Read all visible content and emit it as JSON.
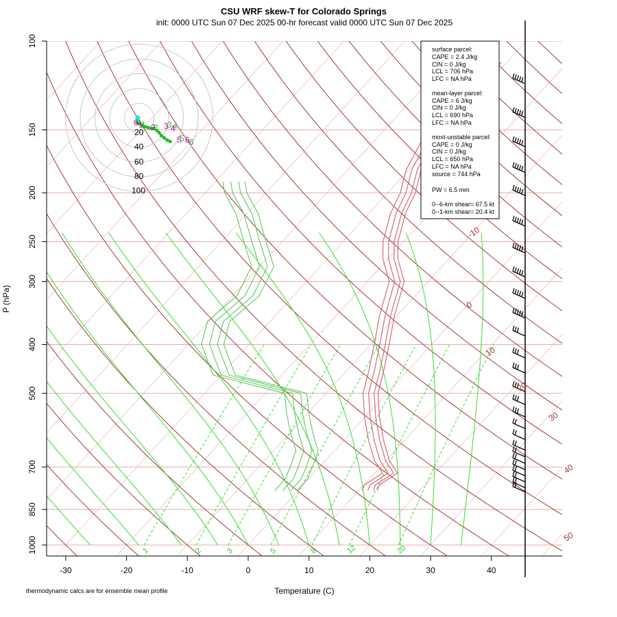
{
  "chart_data": {
    "type": "skew-T",
    "title": "CSU WRF skew-T for Colorado Springs",
    "subtitle": "init: 0000 UTC Sun 07 Dec 2025     00-hr forecast valid 0000 UTC Sun 07 Dec 2025",
    "xlabel": "Temperature (C)",
    "ylabel": "P (hPa)",
    "footnote": "thermodynamic calcs are for ensemble mean profile",
    "x_ticks": [
      -30,
      -20,
      -10,
      0,
      10,
      20,
      30,
      40
    ],
    "y_ticks": [
      100,
      150,
      200,
      250,
      300,
      400,
      500,
      700,
      850,
      1000
    ],
    "xlim": [
      -33,
      52
    ],
    "ylim": [
      1050,
      100
    ],
    "colors": {
      "temperature": "#d45b6a",
      "dewpoint": "#5dc85d",
      "dry_adiabat": "#a33636",
      "moist_adiabat": "#33dd33",
      "mixing_ratio": "#33dd33",
      "isobar": "#e4a8a8",
      "isotherm": "#e4b8b8",
      "wind_barb": "#000000",
      "hodo_green": "#22bb22",
      "hodo_magenta": "#cc00cc",
      "hodo_cyan": "#22ddee"
    },
    "dry_adiabat_labels": [
      "-10",
      "0",
      "10",
      "20",
      "30",
      "40",
      "50"
    ],
    "mixing_ratio_labels": [
      "1",
      "2",
      "3",
      "5",
      "8",
      "12",
      "20"
    ],
    "temperature_profile": [
      {
        "p": 780,
        "t": 11.5
      },
      {
        "p": 760,
        "t": 11.0
      },
      {
        "p": 720,
        "t": 12.2
      },
      {
        "p": 680,
        "t": 9.0
      },
      {
        "p": 620,
        "t": 5.0
      },
      {
        "p": 560,
        "t": 1.0
      },
      {
        "p": 500,
        "t": -3.0
      },
      {
        "p": 450,
        "t": -5.5
      },
      {
        "p": 400,
        "t": -8.5
      },
      {
        "p": 350,
        "t": -12.0
      },
      {
        "p": 300,
        "t": -15.5
      },
      {
        "p": 270,
        "t": -20.0
      },
      {
        "p": 250,
        "t": -22.5
      },
      {
        "p": 220,
        "t": -25.5
      },
      {
        "p": 200,
        "t": -27.0
      },
      {
        "p": 180,
        "t": -29.5
      },
      {
        "p": 150,
        "t": -32.0
      },
      {
        "p": 130,
        "t": -32.0
      },
      {
        "p": 110,
        "t": -32.5
      }
    ],
    "dewpoint_profile": [
      {
        "p": 780,
        "t": -2.5
      },
      {
        "p": 740,
        "t": -2.5
      },
      {
        "p": 700,
        "t": -3.5
      },
      {
        "p": 650,
        "t": -5.0
      },
      {
        "p": 600,
        "t": -8.5
      },
      {
        "p": 550,
        "t": -12.0
      },
      {
        "p": 500,
        "t": -15.5
      },
      {
        "p": 460,
        "t": -30.0
      },
      {
        "p": 400,
        "t": -36.5
      },
      {
        "p": 360,
        "t": -39.0
      },
      {
        "p": 320,
        "t": -38.0
      },
      {
        "p": 280,
        "t": -40.0
      },
      {
        "p": 250,
        "t": -45.0
      },
      {
        "p": 220,
        "t": -50.5
      },
      {
        "p": 200,
        "t": -55.5
      },
      {
        "p": 190,
        "t": -57.5
      }
    ],
    "wind_barb_pressures": [
      120,
      140,
      160,
      180,
      200,
      230,
      260,
      290,
      320,
      350,
      380,
      420,
      450,
      490,
      520,
      550,
      580,
      610,
      640,
      660,
      680,
      700,
      720,
      740,
      760,
      775
    ],
    "hodograph": {
      "rings": [
        20,
        40,
        60,
        80,
        100
      ],
      "ring_labels": [
        "20",
        "40",
        "60",
        "80",
        "100"
      ],
      "labels_green": [
        "0",
        "1",
        "2",
        "3",
        "4",
        "5",
        "6"
      ],
      "labels_magenta": [
        "0",
        "1",
        "2",
        "3",
        "4",
        "5",
        "6"
      ],
      "points": [
        [
          -3,
          -6
        ],
        [
          0,
          -8
        ],
        [
          4,
          -10
        ],
        [
          8,
          -12
        ],
        [
          12,
          -13
        ],
        [
          16,
          -14
        ],
        [
          20,
          -14
        ],
        [
          24,
          -17
        ],
        [
          27,
          -20
        ],
        [
          30,
          -24
        ],
        [
          34,
          -27
        ],
        [
          38,
          -30
        ],
        [
          42,
          -32
        ]
      ],
      "cyan_point": [
        -2,
        0
      ]
    },
    "info_box": {
      "surface_parcel": {
        "header": "surface parcel:",
        "lines": [
          "CAPE = 2.4 J/kg",
          "CIN = 0 J/kg",
          "LCL = 706 hPa",
          "LFC = NA hPa"
        ]
      },
      "mean_layer_parcel": {
        "header": "mean-layer parcel:",
        "lines": [
          "CAPE = 6 J/kg",
          "CIN = 0 J/kg",
          "LCL = 690 hPa",
          "LFC = NA hPa"
        ]
      },
      "most_unstable_parcel": {
        "header": "most-unstable parcel:",
        "lines": [
          "CAPE = 0 J/kg",
          "CIN = 0 J/kg",
          "LCL = 650 hPa",
          "LFC = NA hPa",
          "source = 744 hPa"
        ]
      },
      "pw": "PW =  6.5 mm",
      "shear_0_6": "0--6-km shear= 67.5 kt",
      "shear_0_1": "0--1-km shear= 20.4 kt"
    }
  }
}
